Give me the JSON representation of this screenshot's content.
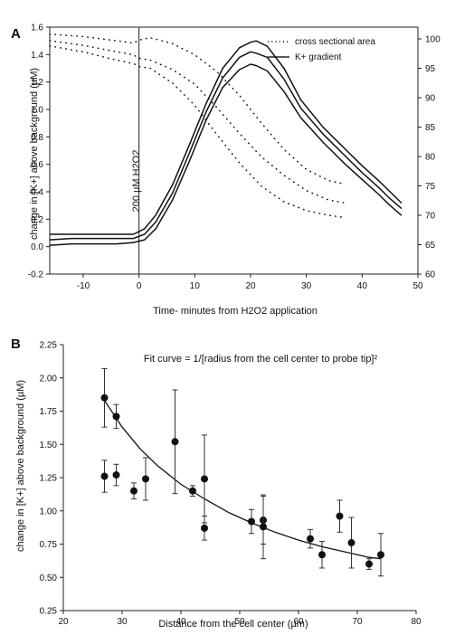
{
  "panels": {
    "a": {
      "label": "A",
      "xlabel": "Time- minutes from H2O2 application",
      "ylabel": "change in [K+] above background (µM)",
      "annotation": "200 µM H2O2",
      "legend": {
        "dotted": "cross sectional area",
        "solid": "K+ gradient"
      }
    },
    "b": {
      "label": "B",
      "xlabel": "Distance from the cell center (µm)",
      "ylabel": "change in [K+] above background (µM)",
      "fit_label": "Fit curve = 1/[radius from the cell center to probe tip]²"
    }
  },
  "chart_data": [
    {
      "type": "line",
      "panel": "A",
      "xlabel": "Time- minutes from H2O2 application",
      "ylabel": "change in [K+] above background (µM)",
      "y2label": "",
      "xlim": [
        -16,
        50
      ],
      "ylim": [
        -0.2,
        1.6
      ],
      "y2lim": [
        60,
        102
      ],
      "x_ticks": [
        -10,
        0,
        10,
        20,
        30,
        40,
        50
      ],
      "y_ticks": [
        -0.2,
        0.0,
        0.2,
        0.4,
        0.6,
        0.8,
        1.0,
        1.2,
        1.4,
        1.6
      ],
      "y2_ticks": [
        60,
        65,
        70,
        75,
        80,
        85,
        90,
        95,
        100
      ],
      "legend_position": "top-right",
      "annotation": {
        "text": "200 µM H2O2",
        "x": 0
      },
      "series": [
        {
          "name": "K+ gradient",
          "style": "solid",
          "axis": "left",
          "lines": [
            {
              "x": [
                -16,
                -12,
                -8,
                -4,
                -1,
                1,
                3,
                6,
                9,
                12,
                15,
                18,
                20,
                21,
                23,
                26,
                29,
                33,
                37,
                40,
                43,
                45,
                47
              ],
              "y": [
                0.09,
                0.09,
                0.09,
                0.09,
                0.09,
                0.13,
                0.23,
                0.45,
                0.74,
                1.04,
                1.3,
                1.45,
                1.49,
                1.5,
                1.46,
                1.3,
                1.07,
                0.87,
                0.71,
                0.59,
                0.48,
                0.4,
                0.32
              ]
            },
            {
              "x": [
                -16,
                -12,
                -8,
                -4,
                -1,
                1,
                3,
                6,
                9,
                12,
                15,
                18,
                20,
                21,
                23,
                26,
                29,
                33,
                37,
                40,
                43,
                45,
                47
              ],
              "y": [
                0.05,
                0.06,
                0.06,
                0.06,
                0.06,
                0.09,
                0.18,
                0.39,
                0.68,
                0.98,
                1.23,
                1.38,
                1.42,
                1.41,
                1.38,
                1.22,
                1.01,
                0.82,
                0.66,
                0.54,
                0.43,
                0.35,
                0.28
              ]
            },
            {
              "x": [
                -16,
                -12,
                -8,
                -4,
                -1,
                1,
                3,
                6,
                9,
                12,
                15,
                18,
                20,
                21,
                23,
                26,
                29,
                33,
                37,
                40,
                43,
                45,
                47
              ],
              "y": [
                0.01,
                0.02,
                0.02,
                0.02,
                0.03,
                0.05,
                0.13,
                0.34,
                0.62,
                0.92,
                1.16,
                1.29,
                1.33,
                1.32,
                1.28,
                1.13,
                0.94,
                0.76,
                0.6,
                0.49,
                0.38,
                0.3,
                0.23
              ]
            }
          ]
        },
        {
          "name": "cross sectional area",
          "style": "dotted",
          "axis": "right",
          "lines": [
            {
              "x": [
                -16,
                -10,
                -5,
                -1,
                0,
                2,
                6,
                10,
                14,
                18,
                22,
                26,
                30,
                34,
                37
              ],
              "y": [
                100.8,
                100.4,
                99.8,
                99.3,
                99.8,
                100.2,
                99.2,
                97.3,
                94.4,
                90.4,
                85.6,
                81.2,
                77.8,
                75.9,
                75.3
              ]
            },
            {
              "x": [
                -16,
                -10,
                -5,
                -1,
                0,
                2,
                6,
                10,
                14,
                18,
                22,
                26,
                30,
                34,
                37
              ],
              "y": [
                99.7,
                98.9,
                98.0,
                97.3,
                96.7,
                96.4,
                94.8,
                92.3,
                88.3,
                83.9,
                79.9,
                76.8,
                74.2,
                72.6,
                72.1
              ]
            },
            {
              "x": [
                -16,
                -10,
                -5,
                -1,
                0,
                2,
                6,
                10,
                14,
                18,
                22,
                26,
                30,
                34,
                37
              ],
              "y": [
                98.8,
                97.8,
                96.6,
                95.8,
                95.3,
                95.0,
                92.5,
                88.7,
                83.7,
                78.9,
                74.9,
                72.3,
                70.8,
                70.0,
                69.6
              ]
            }
          ]
        }
      ]
    },
    {
      "type": "scatter",
      "panel": "B",
      "xlabel": "Distance from the cell center (µm)",
      "ylabel": "change in [K+] above background (µM)",
      "xlim": [
        20,
        80
      ],
      "ylim": [
        0.25,
        2.25
      ],
      "x_ticks": [
        20,
        30,
        40,
        50,
        60,
        70,
        80
      ],
      "y_ticks": [
        0.25,
        0.5,
        0.75,
        1.0,
        1.25,
        1.5,
        1.75,
        2.0,
        2.25
      ],
      "y_tick_labels": [
        "0.25",
        "0.50",
        "0.75",
        "1.00",
        "1.25",
        "1.50",
        "1.75",
        "2.00",
        "2.25"
      ],
      "points": [
        {
          "x": 27,
          "y": 1.85,
          "err": 0.22
        },
        {
          "x": 29,
          "y": 1.71,
          "err": 0.09
        },
        {
          "x": 27,
          "y": 1.26,
          "err": 0.12
        },
        {
          "x": 29,
          "y": 1.27,
          "err": 0.08
        },
        {
          "x": 32,
          "y": 1.15,
          "err": 0.06
        },
        {
          "x": 34,
          "y": 1.24,
          "err": 0.16
        },
        {
          "x": 39,
          "y": 1.52,
          "err": 0.39
        },
        {
          "x": 42,
          "y": 1.15,
          "err": 0.04
        },
        {
          "x": 44,
          "y": 1.24,
          "err": 0.33
        },
        {
          "x": 44,
          "y": 0.87,
          "err": 0.09
        },
        {
          "x": 52,
          "y": 0.92,
          "err": 0.09
        },
        {
          "x": 54,
          "y": 0.93,
          "err": 0.18
        },
        {
          "x": 54,
          "y": 0.88,
          "err": 0.24
        },
        {
          "x": 62,
          "y": 0.79,
          "err": 0.07
        },
        {
          "x": 64,
          "y": 0.67,
          "err": 0.1
        },
        {
          "x": 67,
          "y": 0.96,
          "err": 0.12
        },
        {
          "x": 69,
          "y": 0.76,
          "err": 0.19
        },
        {
          "x": 72,
          "y": 0.6,
          "err": 0.04
        },
        {
          "x": 74,
          "y": 0.67,
          "err": 0.16
        }
      ],
      "fit": {
        "label": "Fit curve = 1/[radius from the cell center to probe tip]²",
        "x": [
          27,
          30,
          33,
          36,
          40,
          44,
          48,
          52,
          56,
          60,
          64,
          68,
          72,
          74
        ],
        "y": [
          1.83,
          1.63,
          1.47,
          1.34,
          1.2,
          1.09,
          0.99,
          0.91,
          0.84,
          0.78,
          0.73,
          0.69,
          0.65,
          0.64
        ]
      }
    }
  ]
}
